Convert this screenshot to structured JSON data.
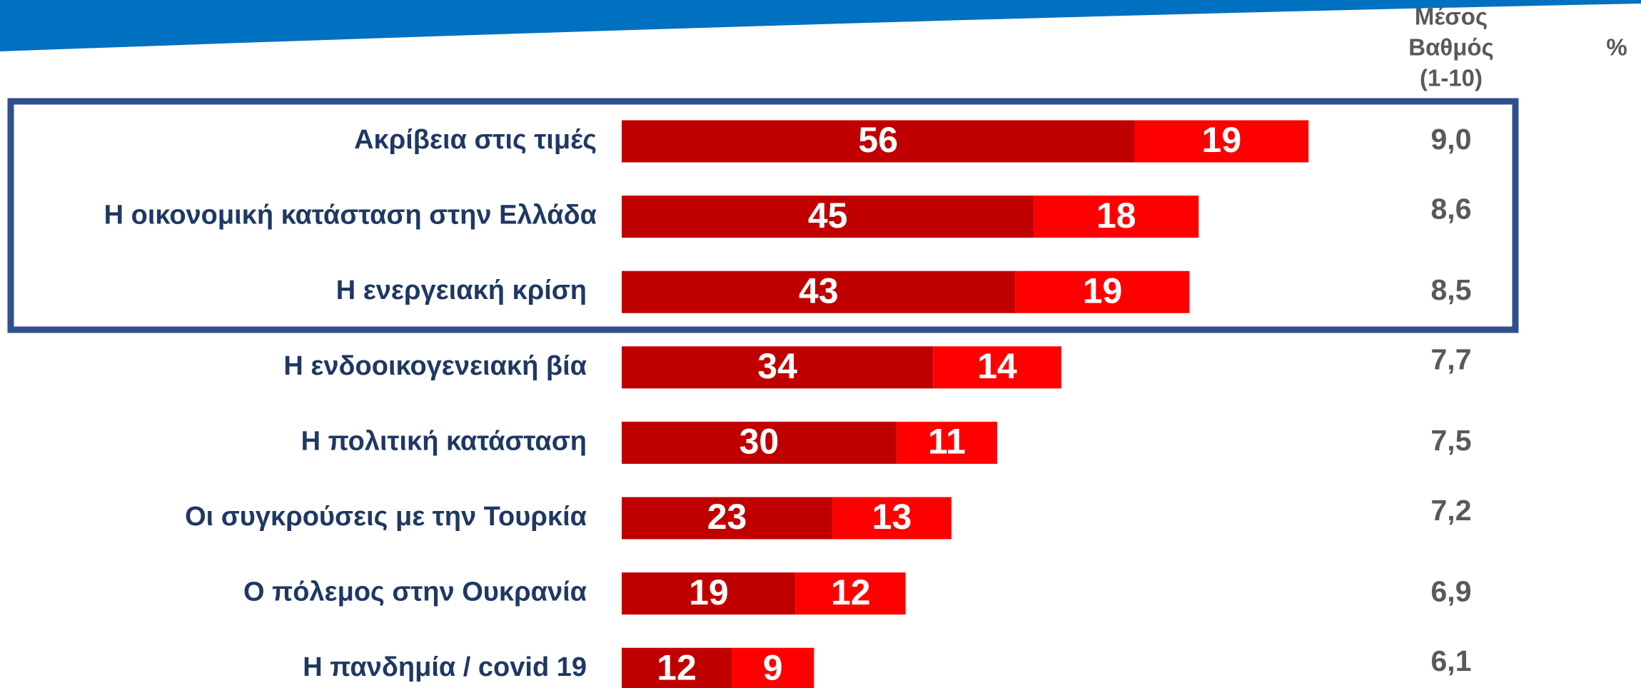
{
  "chart_data": {
    "type": "stacked-bar-horizontal",
    "categories": [
      "Ακρίβεια στις τιμές",
      "Η οικονομική κατάσταση στην Ελλάδα",
      "Η ενεργειακή κρίση",
      "Η ενδοοικογενειακή βία",
      "Η πολιτική κατάσταση",
      "Οι συγκρούσεις με την Τουρκία",
      "Ο πόλεμος στην Ουκρανία",
      "Η πανδημία / covid 19"
    ],
    "series": [
      {
        "color": "#c00000",
        "values": [
          56,
          45,
          43,
          34,
          30,
          23,
          19,
          12
        ]
      },
      {
        "color": "#ff0000",
        "values": [
          19,
          18,
          19,
          14,
          11,
          13,
          12,
          9
        ]
      }
    ],
    "value_header": "%",
    "score_column": {
      "header_lines": [
        "Μέσος",
        "Βαθμός",
        "(1-10)"
      ],
      "values": [
        9.0,
        8.6,
        8.5,
        7.7,
        7.5,
        7.2,
        6.9,
        6.1
      ],
      "value_labels": [
        "9,0",
        "8,6",
        "8,5",
        "7,7",
        "7,5",
        "7,2",
        "6,9",
        "6,1"
      ]
    }
  }
}
